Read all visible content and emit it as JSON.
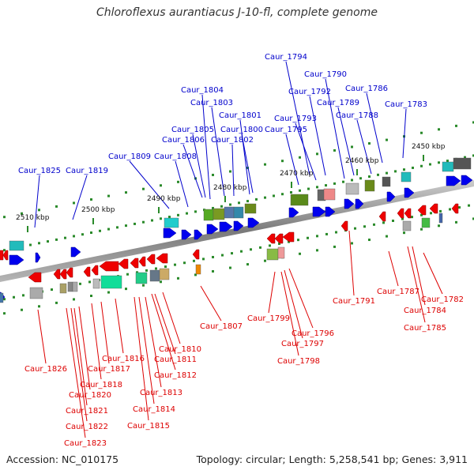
{
  "title": "Chloroflexus aurantiacus J-10-fl, complete genome",
  "footer": {
    "accession": "Accession: NC_010175",
    "summary": "Topology: circular; Length: 5,258,541 bp; Genes: 3,911"
  },
  "colors": {
    "forward_label": "#0000cc",
    "reverse_label": "#dd0000",
    "forward_arrow": "#0000ee",
    "reverse_arrow": "#ee0000",
    "backbone": "#8c8c8c"
  },
  "scale_ticks": [
    "2510 kbp",
    "2500 kbp",
    "2490 kbp",
    "2480 kbp",
    "2470 kbp",
    "2460 kbp",
    "2450 kbp"
  ],
  "forward_labels": [
    "Caur_1794",
    "Caur_1790",
    "Caur_1792",
    "Caur_1786",
    "Caur_1789",
    "Caur_1783",
    "Caur_1804",
    "Caur_1788",
    "Caur_1803",
    "Caur_1793",
    "Caur_1801",
    "Caur_1805",
    "Caur_1800",
    "Caur_1795",
    "Caur_1806",
    "Caur_1802",
    "Caur_1809",
    "Caur_1808",
    "Caur_1825",
    "Caur_1819"
  ],
  "reverse_labels": [
    "Caur_1791",
    "Caur_1787",
    "Caur_1782",
    "Caur_1784",
    "Caur_1785",
    "Caur_1807",
    "Caur_1799",
    "Caur_1796",
    "Caur_1797",
    "Caur_1798",
    "Caur_1810",
    "Caur_1811",
    "Caur_1816",
    "Caur_1812",
    "Caur_1817",
    "Caur_1826",
    "Caur_1818",
    "Caur_1813",
    "Caur_1820",
    "Caur_1814",
    "Caur_1821",
    "Caur_1815",
    "Caur_1822",
    "Caur_1823"
  ]
}
